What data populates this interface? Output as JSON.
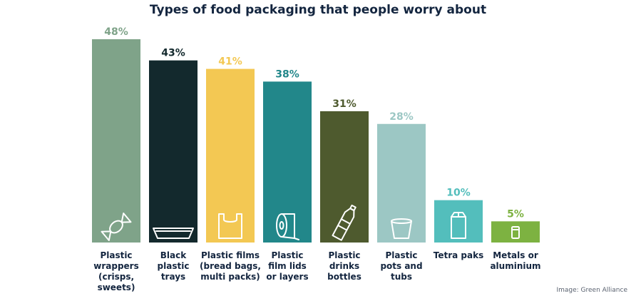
{
  "chart_data": {
    "type": "bar",
    "title": "Types of food packaging that people worry about",
    "xlabel": "",
    "ylabel": "",
    "unit": "%",
    "ylim": [
      0,
      48
    ],
    "grid": false,
    "legend": "none",
    "categories": [
      "Plastic wrappers (crisps, sweets)",
      "Black plastic trays",
      "Plastic films (bread bags, multi packs)",
      "Plastic film lids or layers",
      "Plastic drinks bottles",
      "Plastic pots and tubs",
      "Tetra paks",
      "Metals or aluminium"
    ],
    "category_lines": [
      [
        "Plastic",
        "wrappers",
        "(crisps,",
        "sweets)"
      ],
      [
        "Black",
        "plastic",
        "trays"
      ],
      [
        "Plastic films",
        "(bread bags,",
        "multi packs)"
      ],
      [
        "Plastic",
        "film lids",
        "or layers"
      ],
      [
        "Plastic",
        "drinks",
        "bottles"
      ],
      [
        "Plastic",
        "pots and",
        "tubs"
      ],
      [
        "Tetra paks"
      ],
      [
        "Metals or",
        "aluminium"
      ]
    ],
    "values": [
      48,
      43,
      41,
      38,
      31,
      28,
      10,
      5
    ],
    "value_labels": [
      "48%",
      "43%",
      "41%",
      "38%",
      "31%",
      "28%",
      "10%",
      "5%"
    ],
    "colors": [
      "#7fa389",
      "#13292d",
      "#f3c853",
      "#22878a",
      "#4e5a2e",
      "#9cc7c4",
      "#53bebc",
      "#7db241"
    ],
    "label_colors": [
      "#7fa389",
      "#13292d",
      "#f3c853",
      "#22878a",
      "#4e5a2e",
      "#9cc7c4",
      "#53bebc",
      "#7db241"
    ],
    "icons": [
      "sweet-wrapper-icon",
      "tray-icon",
      "plastic-bag-icon",
      "film-roll-icon",
      "bottle-icon",
      "pot-icon",
      "carton-icon",
      "can-icon"
    ]
  },
  "credit": "Image: Green Alliance"
}
